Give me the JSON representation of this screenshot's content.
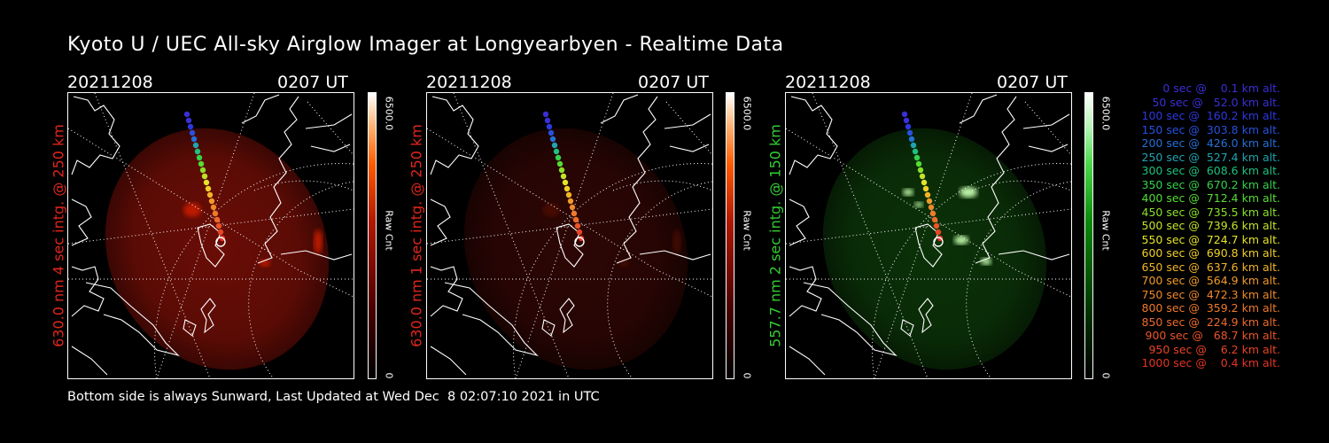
{
  "title": "Kyoto U / UEC All-sky Airglow Imager at Longyearbyen - Realtime Data",
  "panels": [
    {
      "date": "20211208",
      "time": "0207 UT",
      "label": "630.0 nm 4 sec intg. @ 250 km",
      "label_color": "#e0261c",
      "scale_max": "6500.0",
      "scale_min": "0",
      "scale_unit": "Raw Cnt"
    },
    {
      "date": "20211208",
      "time": "0207 UT",
      "label": "630.0 nm 1 sec intg. @ 250 km",
      "label_color": "#e0261c",
      "scale_max": "6500.0",
      "scale_min": "0",
      "scale_unit": "Raw Cnt"
    },
    {
      "date": "20211208",
      "time": "0207 UT",
      "label": "557.7 nm 2 sec intg. @ 150 km",
      "label_color": "#33cc33",
      "scale_max": "6500.0",
      "scale_min": "0",
      "scale_unit": "Raw Cnt"
    }
  ],
  "legend": [
    {
      "text": "   0 sec @    0.1 km alt.",
      "color": "#3a2fd6"
    },
    {
      "text": "  50 sec @   52.0 km alt.",
      "color": "#3a2fd6"
    },
    {
      "text": " 100 sec @  160.2 km alt.",
      "color": "#2c39e0"
    },
    {
      "text": " 150 sec @  303.8 km alt.",
      "color": "#2850e0"
    },
    {
      "text": " 200 sec @  426.0 km alt.",
      "color": "#2470d8"
    },
    {
      "text": " 250 sec @  527.4 km alt.",
      "color": "#21a3b0"
    },
    {
      "text": " 300 sec @  608.6 km alt.",
      "color": "#1fc080"
    },
    {
      "text": " 350 sec @  670.2 km alt.",
      "color": "#33d24a"
    },
    {
      "text": " 400 sec @  712.4 km alt.",
      "color": "#55dd33"
    },
    {
      "text": " 450 sec @  735.5 km alt.",
      "color": "#8ae02a"
    },
    {
      "text": " 500 sec @  739.6 km alt.",
      "color": "#c2e428"
    },
    {
      "text": " 550 sec @  724.7 km alt.",
      "color": "#e4e428"
    },
    {
      "text": " 600 sec @  690.8 km alt.",
      "color": "#f0d028"
    },
    {
      "text": " 650 sec @  637.6 km alt.",
      "color": "#f2b428"
    },
    {
      "text": " 700 sec @  564.9 km alt.",
      "color": "#f09a2a"
    },
    {
      "text": " 750 sec @  472.3 km alt.",
      "color": "#f0882a"
    },
    {
      "text": " 800 sec @  359.2 km alt.",
      "color": "#f07a2a"
    },
    {
      "text": " 850 sec @  224.9 km alt.",
      "color": "#ee6a2a"
    },
    {
      "text": " 900 sec @   68.7 km alt.",
      "color": "#ea5528"
    },
    {
      "text": " 950 sec @    6.2 km alt.",
      "color": "#e84526"
    },
    {
      "text": "1000 sec @    0.4 km alt.",
      "color": "#e53424"
    }
  ],
  "footer": "Bottom side is always Sunward, Last Updated at Wed Dec  8 02:07:10 2021 in UTC"
}
